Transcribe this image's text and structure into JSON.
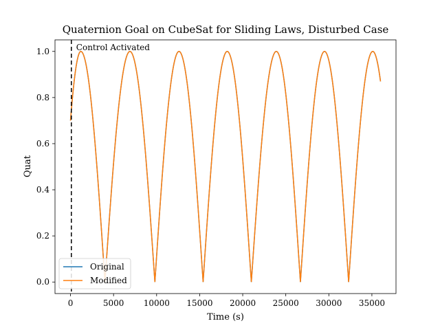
{
  "chart_data": {
    "type": "line",
    "title": "Quaternion Goal on CubeSat for Sliding Laws, Disturbed Case",
    "xlabel": "Time (s)",
    "ylabel": "Quat",
    "xlim": [
      -1800,
      37800
    ],
    "ylim": [
      -0.05,
      1.05
    ],
    "xticks": [
      0,
      5000,
      10000,
      15000,
      20000,
      25000,
      30000,
      35000
    ],
    "xtick_labels": [
      "0",
      "5000",
      "10000",
      "15000",
      "20000",
      "25000",
      "30000",
      "35000"
    ],
    "yticks": [
      0.0,
      0.2,
      0.4,
      0.6,
      0.8,
      1.0
    ],
    "ytick_labels": [
      "0.0",
      "0.2",
      "0.4",
      "0.6",
      "0.8",
      "1.0"
    ],
    "grid": false,
    "legend_position": "lower-left",
    "annotation": {
      "text": "Control Activated",
      "x": 100
    },
    "series": [
      {
        "name": "Original",
        "color": "#1f77b4",
        "x": [
          0,
          1200,
          4000,
          6900,
          9800,
          12600,
          15400,
          18200,
          21000,
          23900,
          26700,
          29500,
          32300,
          35100,
          36000
        ],
        "y": [
          0.7,
          1.0,
          0.0,
          1.0,
          0.0,
          1.0,
          0.0,
          1.0,
          0.0,
          1.0,
          0.0,
          1.0,
          0.0,
          1.0,
          0.87
        ]
      },
      {
        "name": "Modified",
        "color": "#ff7f0e",
        "x": [
          0,
          1200,
          4000,
          6900,
          9800,
          12600,
          15400,
          18200,
          21000,
          23900,
          26700,
          29500,
          32300,
          35100,
          36000
        ],
        "y": [
          0.7,
          1.0,
          0.0,
          1.0,
          0.0,
          1.0,
          0.0,
          1.0,
          0.0,
          1.0,
          0.0,
          1.0,
          0.0,
          1.0,
          0.87
        ]
      }
    ]
  }
}
